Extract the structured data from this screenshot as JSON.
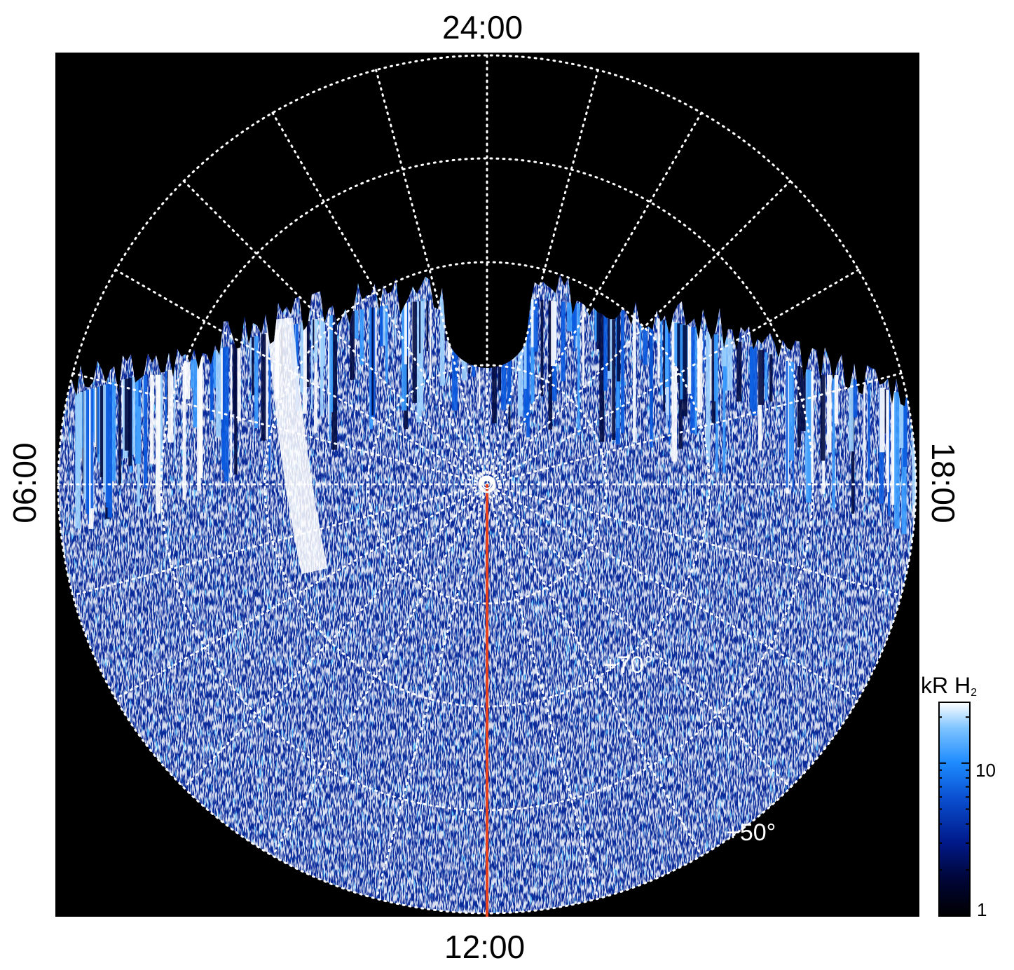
{
  "local_time_labels": {
    "top": "24:00",
    "bottom": "12:00",
    "left": "06:00",
    "right": "18:00"
  },
  "latitude_labels": [
    "+70°",
    "+50°"
  ],
  "colorbar": {
    "title_main": "kR H",
    "title_sub": "2",
    "ticks": [
      "10",
      "1"
    ],
    "scale": "log",
    "range": [
      1,
      25
    ],
    "colors": [
      "#000000",
      "#00063a",
      "#001a8c",
      "#0a4fd0",
      "#1e8cff",
      "#7fc4ff",
      "#ffffff"
    ]
  },
  "colors": {
    "background": "#000000",
    "grid": "#ffffff",
    "meridian": "#e8421c"
  }
}
